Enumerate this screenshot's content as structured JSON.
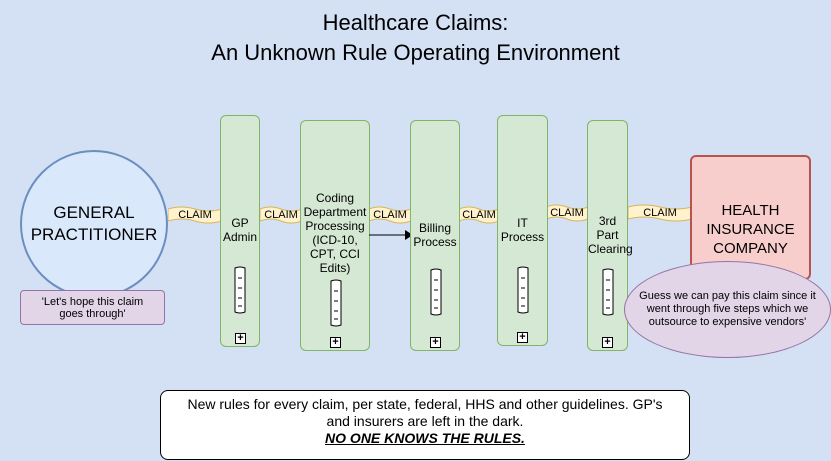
{
  "title": {
    "line1": "Healthcare Claims:",
    "line2": "An Unknown Rule Operating Environment"
  },
  "gp": {
    "line1": "GENERAL",
    "line2": "PRACTITIONER",
    "quote_line1": "'Let's hope this claim",
    "quote_line2": "goes through'"
  },
  "claim_label": "CLAIM",
  "steps": [
    {
      "lines": [
        "GP",
        "Admin"
      ]
    },
    {
      "lines": [
        "Coding",
        "Department",
        "Processing",
        "(ICD-10,",
        "CPT, CCI",
        "Edits)"
      ]
    },
    {
      "lines": [
        "Billing",
        "Process"
      ]
    },
    {
      "lines": [
        "IT",
        "Process"
      ]
    },
    {
      "lines": [
        "3rd",
        "Part",
        "Clearing"
      ]
    }
  ],
  "expand_glyph": "+",
  "insurer": {
    "line1": "HEALTH",
    "line2": "INSURANCE",
    "line3": "COMPANY",
    "quote_line1": "Guess we can pay this claim since it",
    "quote_line2": "went through five steps which we",
    "quote_line3": "outsource to expensive vendors'"
  },
  "footer": {
    "line1": "New rules for every claim, per state, federal, HHS and other guidelines. GP's",
    "line2": "and insurers are left in the dark.",
    "line3": "NO ONE KNOWS THE RULES."
  },
  "colors": {
    "background": "#d4e1f5",
    "step_fill": "#d5e8d4",
    "step_border": "#82b366",
    "claim_fill": "#fff2cc",
    "claim_border": "#d6b656",
    "gp_fill": "#dae8fc",
    "insurer_fill": "#f8cecc",
    "note_fill": "#e1d5e7"
  }
}
